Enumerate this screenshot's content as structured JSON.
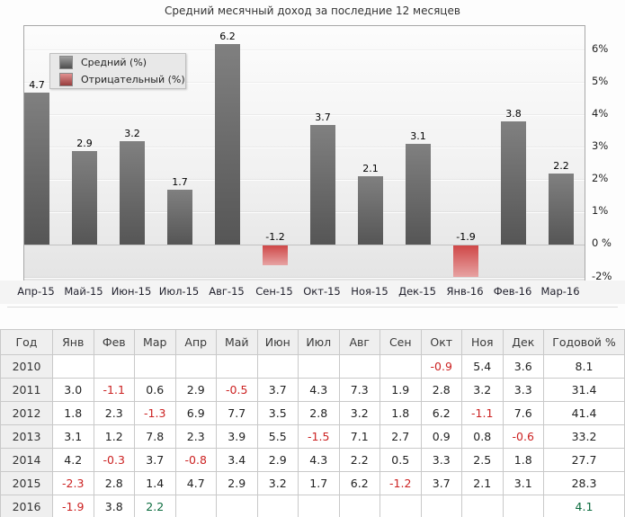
{
  "chart_data": {
    "type": "bar",
    "title": "Средний месячный доход за последние 12 месяцев",
    "categories": [
      "Апр-15",
      "Май-15",
      "Июн-15",
      "Июл-15",
      "Авг-15",
      "Сен-15",
      "Окт-15",
      "Ноя-15",
      "Дек-15",
      "Янв-16",
      "Фев-16",
      "Мар-16"
    ],
    "values": [
      4.7,
      2.9,
      3.2,
      1.7,
      6.2,
      -1.2,
      3.7,
      2.1,
      3.1,
      -1.9,
      3.8,
      2.2
    ],
    "legend": [
      {
        "name": "Средний (%)",
        "color": "#6b6b6b"
      },
      {
        "name": "Отрицательный (%)",
        "color": "#d25555"
      }
    ],
    "legend_position": "top-left",
    "grid": true,
    "ylim": [
      -2.2,
      6.8
    ],
    "y_ticks": [
      {
        "v": 6,
        "label": "6%"
      },
      {
        "v": 5,
        "label": "5%"
      },
      {
        "v": 4,
        "label": "4%"
      },
      {
        "v": 3,
        "label": "3%"
      },
      {
        "v": 2,
        "label": "2%"
      },
      {
        "v": 1,
        "label": "1%"
      },
      {
        "v": 0,
        "label": "0 %"
      },
      {
        "v": -2,
        "label": "-2%"
      }
    ],
    "colors": {
      "positive": "#6b6b6b",
      "negative": "#cf4747",
      "negative_text": "#cc2222",
      "green_text": "#0a6b3d"
    }
  },
  "table": {
    "headers": [
      "Год",
      "Янв",
      "Фев",
      "Мар",
      "Апр",
      "Май",
      "Июн",
      "Июл",
      "Авг",
      "Сен",
      "Окт",
      "Ноя",
      "Дек",
      "Годовой %"
    ],
    "rows": [
      {
        "year": "2010",
        "months": [
          "",
          "",
          "",
          "",
          "",
          "",
          "",
          "",
          "",
          "-0.9",
          "5.4",
          "3.6"
        ],
        "annual": "8.1"
      },
      {
        "year": "2011",
        "months": [
          "3.0",
          "-1.1",
          "0.6",
          "2.9",
          "-0.5",
          "3.7",
          "4.3",
          "7.3",
          "1.9",
          "2.8",
          "3.2",
          "3.3"
        ],
        "annual": "31.4"
      },
      {
        "year": "2012",
        "months": [
          "1.8",
          "2.3",
          "-1.3",
          "6.9",
          "7.7",
          "3.5",
          "2.8",
          "3.2",
          "1.8",
          "6.2",
          "-1.1",
          "7.6"
        ],
        "annual": "41.4"
      },
      {
        "year": "2013",
        "months": [
          "3.1",
          "1.2",
          "7.8",
          "2.3",
          "3.9",
          "5.5",
          "-1.5",
          "7.1",
          "2.7",
          "0.9",
          "0.8",
          "-0.6"
        ],
        "annual": "33.2"
      },
      {
        "year": "2014",
        "months": [
          "4.2",
          "-0.3",
          "3.7",
          "-0.8",
          "3.4",
          "2.9",
          "4.3",
          "2.2",
          "0.5",
          "3.3",
          "2.5",
          "1.8"
        ],
        "annual": "27.7"
      },
      {
        "year": "2015",
        "months": [
          "-2.3",
          "2.8",
          "1.4",
          "4.7",
          "2.9",
          "3.2",
          "1.7",
          "6.2",
          "-1.2",
          "3.7",
          "2.1",
          "3.1"
        ],
        "annual": "28.3"
      },
      {
        "year": "2016",
        "months": [
          "-1.9",
          "3.8",
          "2.2",
          "",
          "",
          "",
          "",
          "",
          "",
          "",
          "",
          ""
        ],
        "annual": "4.1"
      }
    ],
    "green_cells": [
      {
        "year": "2016",
        "column": "Мар"
      },
      {
        "year": "2016",
        "column": "Годовой %"
      }
    ]
  }
}
